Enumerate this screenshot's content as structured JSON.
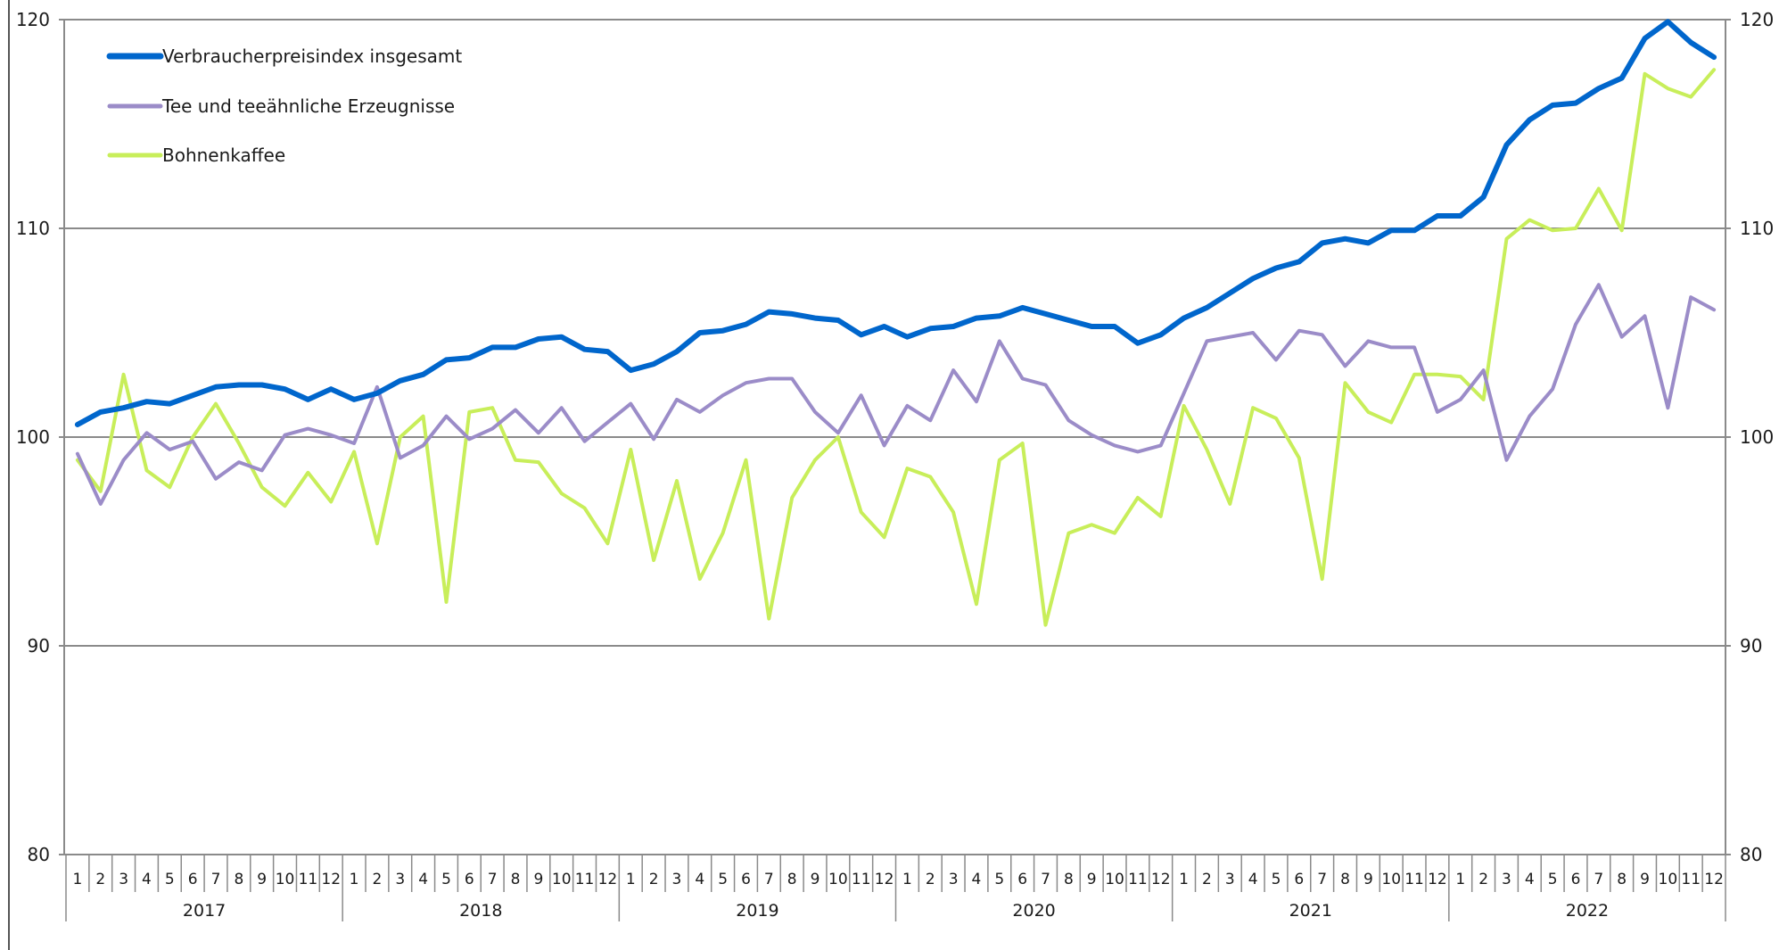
{
  "chart_data": {
    "type": "line",
    "title": "",
    "xlabel": "",
    "ylabel": "",
    "ylim": [
      80,
      120
    ],
    "yticks": [
      80,
      90,
      100,
      110,
      120
    ],
    "grid": true,
    "legend_position": "top-left",
    "month_labels": [
      "1",
      "2",
      "3",
      "4",
      "5",
      "6",
      "7",
      "8",
      "9",
      "10",
      "11",
      "12"
    ],
    "years": [
      "2017",
      "2018",
      "2019",
      "2020",
      "2021",
      "2022"
    ],
    "series": [
      {
        "name": "Verbraucherpreisindex insgesamt",
        "color": "#0066cc",
        "width": 6,
        "values": [
          100.6,
          101.2,
          101.4,
          101.7,
          101.6,
          102.0,
          102.4,
          102.5,
          102.5,
          102.3,
          101.8,
          102.3,
          101.8,
          102.1,
          102.7,
          103.0,
          103.7,
          103.8,
          104.3,
          104.3,
          104.7,
          104.8,
          104.2,
          104.1,
          103.2,
          103.5,
          104.1,
          105.0,
          105.1,
          105.4,
          106.0,
          105.9,
          105.7,
          105.6,
          104.9,
          105.3,
          104.8,
          105.2,
          105.3,
          105.7,
          105.8,
          106.2,
          105.9,
          105.6,
          105.3,
          105.3,
          104.5,
          104.9,
          105.7,
          106.2,
          106.9,
          107.6,
          108.1,
          108.4,
          109.3,
          109.5,
          109.3,
          109.9,
          109.9,
          110.6,
          110.6,
          111.5,
          114.0,
          115.2,
          115.9,
          116.0,
          116.7,
          117.2,
          119.1,
          119.9,
          118.9,
          118.2
        ]
      },
      {
        "name": "Tee und teeähnliche Erzeugnisse",
        "color": "#9b8cc8",
        "width": 4,
        "values": [
          99.2,
          96.8,
          98.9,
          100.2,
          99.4,
          99.8,
          98.0,
          98.8,
          98.4,
          100.1,
          100.4,
          100.1,
          99.7,
          102.4,
          99.0,
          99.6,
          101.0,
          99.9,
          100.4,
          101.3,
          100.2,
          101.4,
          99.8,
          100.7,
          101.6,
          99.9,
          101.8,
          101.2,
          102.0,
          102.6,
          102.8,
          102.8,
          101.2,
          100.2,
          102.0,
          99.6,
          101.5,
          100.8,
          103.2,
          101.7,
          104.6,
          102.8,
          102.5,
          100.8,
          100.1,
          99.6,
          99.3,
          99.6,
          102.1,
          104.6,
          104.8,
          105.0,
          103.7,
          105.1,
          104.9,
          103.4,
          104.6,
          104.3,
          104.3,
          101.2,
          101.8,
          103.2,
          98.9,
          101.0,
          102.3,
          105.4,
          107.3,
          104.8,
          105.8,
          101.4,
          106.7,
          106.1
        ]
      },
      {
        "name": "Bohnenkaffee",
        "color": "#c8ee5a",
        "width": 4,
        "values": [
          98.9,
          97.4,
          103.0,
          98.4,
          97.6,
          100.0,
          101.6,
          99.7,
          97.6,
          96.7,
          98.3,
          96.9,
          99.3,
          94.9,
          100.0,
          101.0,
          92.1,
          101.2,
          101.4,
          98.9,
          98.8,
          97.3,
          96.6,
          94.9,
          99.4,
          94.1,
          97.9,
          93.2,
          95.4,
          98.9,
          91.3,
          97.1,
          98.9,
          100.0,
          96.4,
          95.2,
          98.5,
          98.1,
          96.4,
          92.0,
          98.9,
          99.7,
          91.0,
          95.4,
          95.8,
          95.4,
          97.1,
          96.2,
          101.5,
          99.4,
          96.8,
          101.4,
          100.9,
          99.0,
          93.2,
          102.6,
          101.2,
          100.7,
          103.0,
          103.0,
          102.9,
          101.8,
          109.5,
          110.4,
          109.9,
          110.0,
          111.9,
          109.9,
          117.4,
          116.7,
          116.3,
          117.6
        ]
      }
    ]
  }
}
